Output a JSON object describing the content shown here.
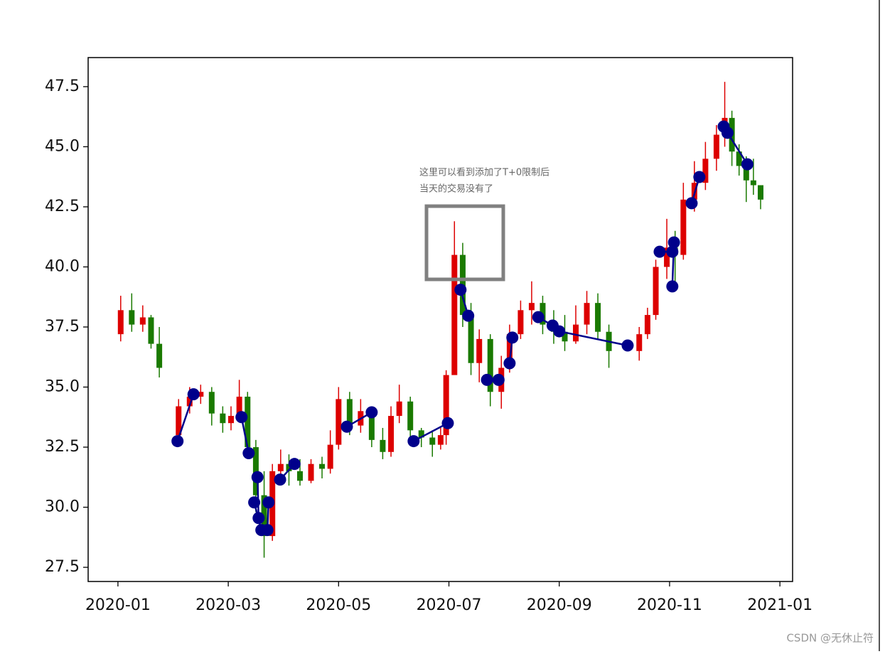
{
  "chart_data": {
    "type": "candlestick",
    "annotation": [
      "这里可以看到添加了T+0限制后",
      "当天的交易没有了"
    ],
    "watermark": "CSDN @无休止符",
    "xlim": [
      -0.54,
      12.23
    ],
    "xticks": [
      {
        "value": 0,
        "label": "2020-01"
      },
      {
        "value": 2,
        "label": "2020-03"
      },
      {
        "value": 4,
        "label": "2020-05"
      },
      {
        "value": 6,
        "label": "2020-07"
      },
      {
        "value": 8,
        "label": "2020-09"
      },
      {
        "value": 10,
        "label": "2020-11"
      },
      {
        "value": 12,
        "label": "2021-01"
      }
    ],
    "ylim": [
      26.91,
      48.71
    ],
    "yticks": [
      27.5,
      {
        "value": 30,
        "label": "30.0"
      },
      32.5,
      {
        "value": 35,
        "label": "35.0"
      },
      37.5,
      {
        "value": 40,
        "label": "40.0"
      },
      42.5,
      {
        "value": 45,
        "label": "45.0"
      },
      47.5
    ],
    "up_color": "#dd0000",
    "down_color": "#1a7a00",
    "candles": {
      "x": [
        0.05,
        0.25,
        0.45,
        0.6,
        0.75,
        1.1,
        1.3,
        1.5,
        1.7,
        1.9,
        2.05,
        2.2,
        2.35,
        2.5,
        2.65,
        2.8,
        2.95,
        3.1,
        3.3,
        3.5,
        3.7,
        3.85,
        4.0,
        4.2,
        4.4,
        4.6,
        4.8,
        4.95,
        5.1,
        5.3,
        5.5,
        5.7,
        5.85,
        5.95,
        6.1,
        6.25,
        6.4,
        6.55,
        6.75,
        6.95,
        7.1,
        7.3,
        7.5,
        7.7,
        7.9,
        8.1,
        8.3,
        8.5,
        8.7,
        8.9,
        9.45,
        9.6,
        9.75,
        9.95,
        10.1,
        10.25,
        10.45,
        10.65,
        10.85,
        11.0,
        11.13,
        11.26,
        11.39,
        11.52,
        11.65
      ],
      "open": [
        37.2,
        38.2,
        37.6,
        37.9,
        36.8,
        33.0,
        34.2,
        34.6,
        34.8,
        33.9,
        33.5,
        33.8,
        34.6,
        32.5,
        30.5,
        28.8,
        31.5,
        31.8,
        31.5,
        31.1,
        31.8,
        31.6,
        32.6,
        34.5,
        33.4,
        34.0,
        32.8,
        32.3,
        33.8,
        34.4,
        33.2,
        32.9,
        32.6,
        33.0,
        35.5,
        40.5,
        38.0,
        36.0,
        37.0,
        34.8,
        35.8,
        37.2,
        38.2,
        38.5,
        37.6,
        37.3,
        36.9,
        37.6,
        38.5,
        37.3,
        36.5,
        37.2,
        38.0,
        40.0,
        40.8,
        40.5,
        42.8,
        43.5,
        44.5,
        45.5,
        46.2,
        44.8,
        44.2,
        43.6,
        43.4
      ],
      "close": [
        38.2,
        37.6,
        37.9,
        36.8,
        35.8,
        34.2,
        34.6,
        34.8,
        33.9,
        33.5,
        33.8,
        34.6,
        32.5,
        30.5,
        28.8,
        31.5,
        31.8,
        31.5,
        31.1,
        31.8,
        31.6,
        32.6,
        34.5,
        33.4,
        34.0,
        32.8,
        32.3,
        33.8,
        34.4,
        33.2,
        32.9,
        32.6,
        33.0,
        35.5,
        40.5,
        38.0,
        36.0,
        37.0,
        34.8,
        35.8,
        37.2,
        38.2,
        38.5,
        37.6,
        37.3,
        36.9,
        37.6,
        38.5,
        37.3,
        36.5,
        37.2,
        38.0,
        40.0,
        40.8,
        40.5,
        42.8,
        43.5,
        44.5,
        45.5,
        46.2,
        44.8,
        44.2,
        43.6,
        43.4,
        42.8
      ],
      "high": [
        38.8,
        38.9,
        38.4,
        38.0,
        37.5,
        34.5,
        35.0,
        35.1,
        35.0,
        34.2,
        34.2,
        35.3,
        34.8,
        32.8,
        31.5,
        31.8,
        32.4,
        32.2,
        32.0,
        32.0,
        32.1,
        33.2,
        35.0,
        34.8,
        34.5,
        34.2,
        33.3,
        34.2,
        35.1,
        34.6,
        33.3,
        33.2,
        33.3,
        35.7,
        41.9,
        41.0,
        38.5,
        37.4,
        37.2,
        36.3,
        37.6,
        38.6,
        39.4,
        38.8,
        38.2,
        38.0,
        38.4,
        39.0,
        38.9,
        37.6,
        37.5,
        38.3,
        40.3,
        42.0,
        41.5,
        43.5,
        44.4,
        45.2,
        45.9,
        47.7,
        46.5,
        45.1,
        44.6,
        44.5,
        43.2
      ],
      "low": [
        36.9,
        37.3,
        37.3,
        36.6,
        35.4,
        32.7,
        33.9,
        34.3,
        33.4,
        33.1,
        33.2,
        33.6,
        32.2,
        29.8,
        27.9,
        28.6,
        31.0,
        30.9,
        30.9,
        31.0,
        31.2,
        31.4,
        32.4,
        33.0,
        33.1,
        32.5,
        32.0,
        32.1,
        33.5,
        32.9,
        32.5,
        32.1,
        32.4,
        32.6,
        36.0,
        37.5,
        35.5,
        35.2,
        34.2,
        34.1,
        35.6,
        37.0,
        37.6,
        37.2,
        36.8,
        36.5,
        36.8,
        37.2,
        37.0,
        35.8,
        36.1,
        37.0,
        37.8,
        39.5,
        39.3,
        40.3,
        42.3,
        43.2,
        44.0,
        45.0,
        44.2,
        43.8,
        42.7,
        43.0,
        42.4
      ]
    },
    "trades": {
      "color": "#00008b",
      "x": [
        1.08,
        1.37,
        null,
        2.24,
        2.37,
        null,
        2.53,
        2.55,
        null,
        2.47,
        2.6,
        null,
        2.71,
        2.73,
        null,
        2.94,
        3.2,
        null,
        4.15,
        4.6,
        null,
        5.36,
        5.98,
        null,
        6.21,
        6.35,
        null,
        6.69,
        6.9,
        null,
        7.1,
        7.15,
        null,
        7.62,
        7.88,
        null,
        8.0,
        9.24,
        null,
        9.82,
        10.05,
        null,
        10.05,
        10.08,
        null,
        10.4,
        10.54,
        null,
        10.98,
        11.41,
        null,
        11.05
      ],
      "y": [
        32.75,
        34.7,
        null,
        33.75,
        32.25,
        null,
        31.25,
        29.55,
        null,
        30.2,
        29.05,
        null,
        29.05,
        30.2,
        null,
        31.15,
        31.8,
        null,
        33.35,
        33.95,
        null,
        32.75,
        33.5,
        null,
        39.05,
        37.97,
        null,
        35.3,
        35.3,
        null,
        35.99,
        37.06,
        null,
        37.91,
        37.56,
        null,
        37.32,
        36.73,
        null,
        40.63,
        40.63,
        null,
        39.19,
        41.02,
        null,
        42.65,
        43.74,
        null,
        45.84,
        44.27,
        null,
        45.58
      ]
    }
  }
}
